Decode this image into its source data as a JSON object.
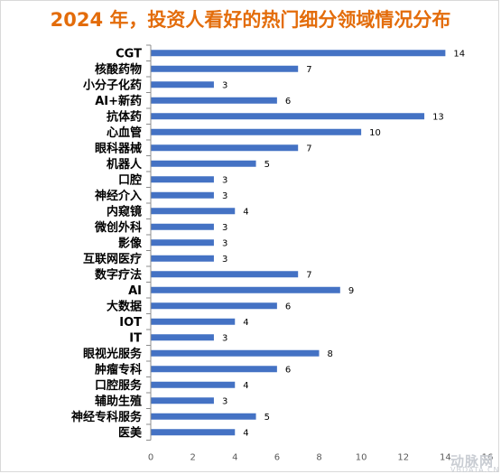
{
  "chart_data": {
    "type": "bar",
    "orientation": "horizontal",
    "title": "2024 年，投资人看好的热门细分领域情况分布",
    "categories": [
      "CGT",
      "核酸药物",
      "小分子化药",
      "AI+新药",
      "抗体药",
      "心血管",
      "眼科器械",
      "机器人",
      "口腔",
      "神经介入",
      "内窥镜",
      "微创外科",
      "影像",
      "互联网医疗",
      "数字疗法",
      "AI",
      "大数据",
      "IOT",
      "IT",
      "眼视光服务",
      "肿瘤专科",
      "口腔服务",
      "辅助生殖",
      "神经专科服务",
      "医美"
    ],
    "values": [
      14,
      7,
      3,
      6,
      13,
      10,
      7,
      5,
      3,
      3,
      4,
      3,
      3,
      3,
      7,
      9,
      6,
      4,
      3,
      8,
      6,
      4,
      3,
      5,
      4
    ],
    "xlim": [
      0,
      16
    ],
    "xticks": [
      0,
      2,
      4,
      6,
      8,
      10,
      12,
      14,
      16
    ],
    "bar_color": "#4472C4",
    "data_labels": true,
    "grid": false,
    "legend": "none"
  },
  "watermark": {
    "logo": "动脉网",
    "sub": "VBDATA.CN"
  }
}
